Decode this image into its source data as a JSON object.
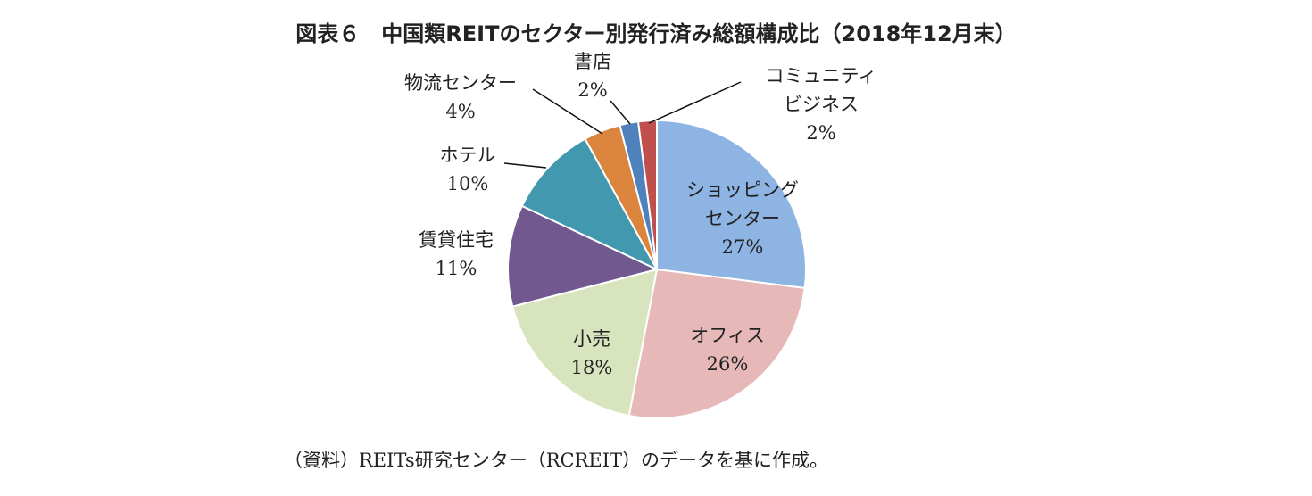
{
  "chart_data": {
    "type": "pie",
    "title": "図表６　中国類REITのセクター別発行済み総額構成比（2018年12月末）",
    "slices": [
      {
        "name": "ショッピング\nセンター",
        "value": 27,
        "label": "27%",
        "color": "#8EB4E3"
      },
      {
        "name": "オフィス",
        "value": 26,
        "label": "26%",
        "color": "#E6B9B8"
      },
      {
        "name": "小売",
        "value": 18,
        "label": "18%",
        "color": "#D7E4BD"
      },
      {
        "name": "賃貸住宅",
        "value": 11,
        "label": "11%",
        "color": "#71588F"
      },
      {
        "name": "ホテル",
        "value": 10,
        "label": "10%",
        "color": "#4198AF"
      },
      {
        "name": "物流センター",
        "value": 4,
        "label": "4%",
        "color": "#DB843D"
      },
      {
        "name": "書店",
        "value": 2,
        "label": "2%",
        "color": "#4F81BD"
      },
      {
        "name": "コミュニティ\nビジネス",
        "value": 2,
        "label": "2%",
        "color": "#C0504D"
      }
    ]
  },
  "source_note": "（資料）REITs研究センター（RCREIT）のデータを基に作成。"
}
